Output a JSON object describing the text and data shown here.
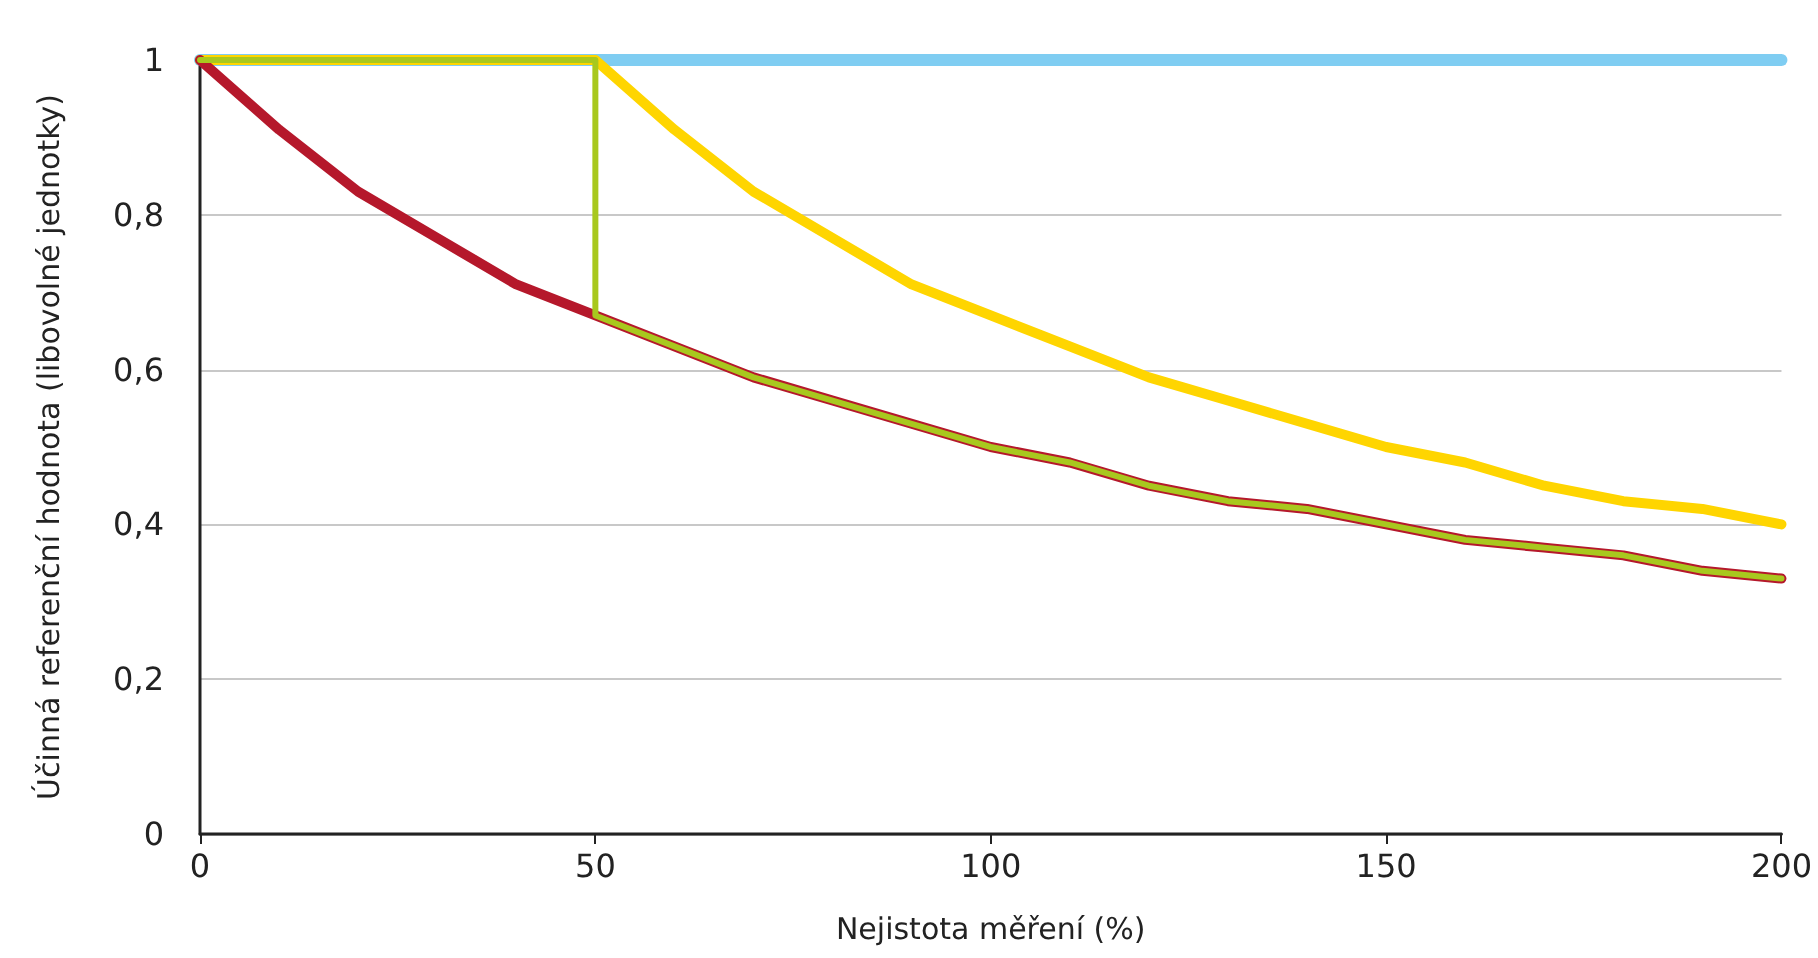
{
  "chart_data": {
    "type": "line",
    "xlabel": "Nejistota měření (%)",
    "ylabel": "Účinná referenční hodnota (libovolné jednotky)",
    "xlim": [
      0,
      200
    ],
    "xticks": [
      0,
      50,
      100,
      150,
      200
    ],
    "ylim": [
      0,
      1
    ],
    "yticks": [
      0,
      {
        "value": 0.2,
        "label": "0,2"
      },
      {
        "value": 0.4,
        "label": "0,4"
      },
      {
        "value": 0.6,
        "label": "0,6"
      },
      {
        "value": 0.8,
        "label": "0,8"
      },
      1
    ],
    "grid": "y",
    "marker": "none",
    "line_style": "solid",
    "series": [
      {
        "color": "#7fcdf2",
        "x": [
          0,
          200
        ],
        "values": [
          1,
          1
        ]
      },
      {
        "color": "#ffd500",
        "x": [
          0,
          50,
          60,
          70,
          80,
          90,
          100,
          110,
          120,
          130,
          140,
          150,
          160,
          170,
          180,
          190,
          200
        ],
        "values": [
          1,
          1,
          0.91,
          0.83,
          0.77,
          0.71,
          0.67,
          0.63,
          0.59,
          0.56,
          0.53,
          0.5,
          0.48,
          0.45,
          0.43,
          0.42,
          0.4
        ]
      },
      {
        "color": "#b5182b",
        "x": [
          0,
          10,
          20,
          30,
          40,
          50,
          60,
          70,
          80,
          90,
          100,
          110,
          120,
          130,
          140,
          150,
          160,
          170,
          180,
          190,
          200
        ],
        "values": [
          1,
          0.91,
          0.83,
          0.77,
          0.71,
          0.67,
          0.63,
          0.59,
          0.56,
          0.53,
          0.5,
          0.48,
          0.45,
          0.43,
          0.42,
          0.4,
          0.38,
          0.37,
          0.36,
          0.34,
          0.33
        ]
      },
      {
        "color": "#a8c81e",
        "x": [
          0,
          50,
          50,
          60,
          70,
          80,
          90,
          100,
          110,
          120,
          130,
          140,
          150,
          160,
          170,
          180,
          190,
          200
        ],
        "values": [
          1,
          1,
          0.67,
          0.63,
          0.59,
          0.56,
          0.53,
          0.5,
          0.48,
          0.45,
          0.43,
          0.42,
          0.4,
          0.38,
          0.37,
          0.36,
          0.34,
          0.33
        ]
      }
    ]
  }
}
